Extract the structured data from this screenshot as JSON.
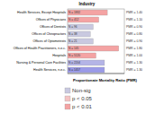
{
  "chart_data": {
    "type": "bar",
    "orientation": "horizontal",
    "title": "Industry",
    "x_label": "Proportionate Mortality Ratio (PMR)",
    "categories": [
      "Health Services, Except Hospitals",
      "Offices of Physicians",
      "Offices of Dentists",
      "Offices of Chiropractors",
      "Offices of Optometrists",
      "Offices of Health Practitioners, n.e.c.",
      "Hospitals",
      "Nursing & Personal Care Facilities",
      "Health Services, n.e.c."
    ],
    "values": [
      1.4,
      1.1,
      0.9,
      0.8,
      0.9,
      1.8,
      1.0,
      1.3,
      1.3
    ],
    "value_labels": [
      "PMR = 1.40",
      "PMR = 1.10",
      "PMR = 0.90",
      "PMR = 0.80",
      "PMR = 0.90",
      "PMR = 1.80",
      "PMR = 1.00",
      "PMR = 1.30",
      "PMR = 1.30"
    ],
    "n_labels": [
      "N = 1832",
      "N = 412",
      "N = 96",
      "N = 38",
      "N = 21",
      "N = 145",
      "N = 5120",
      "N = 2204",
      "N = 1457"
    ],
    "colors": [
      "#f4a3a3",
      "#f4a3a3",
      "#c9c9e0",
      "#c9c9e0",
      "#c9c9e0",
      "#f4a3a3",
      "#f4a3a3",
      "#b4b4e6",
      "#9a9ae8"
    ],
    "xlim": [
      0,
      2
    ],
    "tick_labels": false,
    "data_labels": true,
    "legend_items": [
      {
        "name": "Non-sig",
        "color": "#c9c9e0"
      },
      {
        "name": "p < 0.05",
        "color": "#f4c4c4"
      },
      {
        "name": "p < 0.01",
        "color": "#f4a3a3"
      }
    ]
  }
}
